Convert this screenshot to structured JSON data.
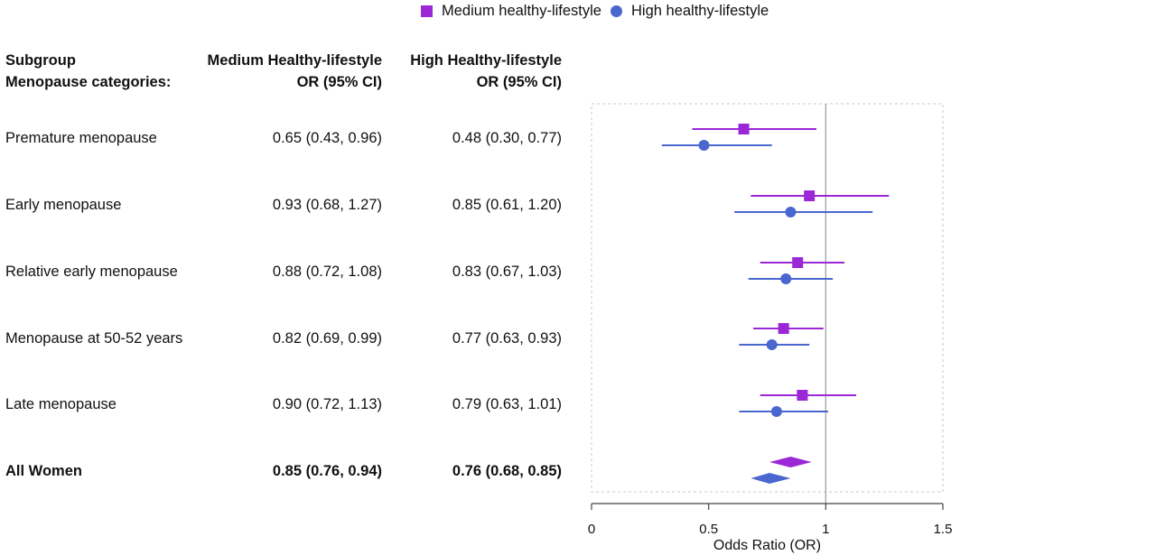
{
  "legend": {
    "medium_label": "Medium healthy-lifestyle",
    "high_label": "High healthy-lifestyle"
  },
  "colors": {
    "medium": "#9b27d6",
    "high": "#4a66cf",
    "axis": "#444444",
    "refline": "#9a9a9a"
  },
  "header": {
    "subgroup": "Subgroup",
    "menopause_categories": "Menopause categories:",
    "col_medium_line1": "Medium Healthy-lifestyle",
    "col_medium_line2": "OR (95% CI)",
    "col_high_line1": "High Healthy-lifestyle",
    "col_high_line2": "OR (95% CI)"
  },
  "rows": [
    {
      "label": "Premature menopause",
      "medium_text": "0.65 (0.43, 0.96)",
      "high_text": "0.48 (0.30, 0.77)"
    },
    {
      "label": "Early menopause",
      "medium_text": "0.93 (0.68, 1.27)",
      "high_text": "0.85 (0.61, 1.20)"
    },
    {
      "label": "Relative early menopause",
      "medium_text": "0.88 (0.72, 1.08)",
      "high_text": "0.83 (0.67, 1.03)"
    },
    {
      "label": "Menopause at 50-52 years",
      "medium_text": "0.82 (0.69, 0.99)",
      "high_text": "0.77 (0.63, 0.93)"
    },
    {
      "label": "Late menopause",
      "medium_text": "0.90 (0.72, 1.13)",
      "high_text": "0.79 (0.63, 1.01)"
    },
    {
      "label": "All Women",
      "medium_text": "0.85 (0.76, 0.94)",
      "high_text": "0.76 (0.68, 0.85)"
    }
  ],
  "chart_data": {
    "type": "forest",
    "xlabel": "Odds Ratio (OR)",
    "xlim": [
      0,
      1.5
    ],
    "xticks": [
      0,
      0.5,
      1,
      1.5
    ],
    "xtick_labels": [
      "0",
      "0.5",
      "1",
      "1.5"
    ],
    "reference_line": 1,
    "categories": [
      "Premature menopause",
      "Early menopause",
      "Relative early menopause",
      "Menopause at 50-52 years",
      "Late menopause",
      "All Women"
    ],
    "series": [
      {
        "name": "Medium healthy-lifestyle",
        "marker": "square",
        "or": [
          0.65,
          0.93,
          0.88,
          0.82,
          0.9,
          0.85
        ],
        "lower": [
          0.43,
          0.68,
          0.72,
          0.69,
          0.72,
          0.76
        ],
        "upper": [
          0.96,
          1.27,
          1.08,
          0.99,
          1.13,
          0.94
        ]
      },
      {
        "name": "High healthy-lifestyle",
        "marker": "circle",
        "or": [
          0.48,
          0.85,
          0.83,
          0.77,
          0.79,
          0.76
        ],
        "lower": [
          0.3,
          0.61,
          0.67,
          0.63,
          0.63,
          0.68
        ],
        "upper": [
          0.77,
          1.2,
          1.03,
          0.93,
          1.01,
          0.85
        ]
      }
    ],
    "pooled_index": 5
  }
}
